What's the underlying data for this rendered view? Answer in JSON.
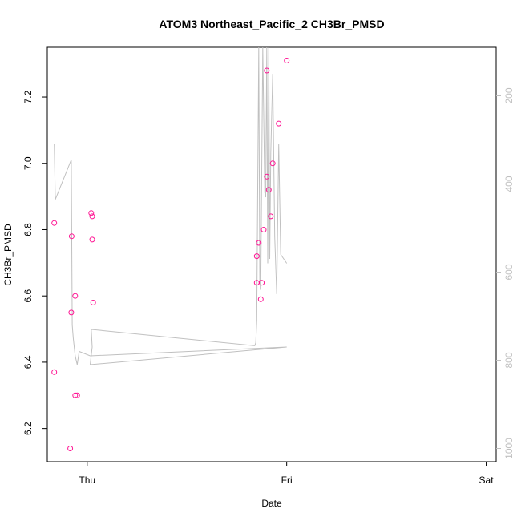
{
  "chart_data": {
    "type": "scatter",
    "title": "ATOM3 Northeast_Pacific_2 CH3Br_PMSD",
    "xlabel": "Date",
    "ylabel": "CH3Br_PMSD",
    "x_ticks": [
      {
        "label": "Thu",
        "value": 0.0
      },
      {
        "label": "Fri",
        "value": 1.0
      },
      {
        "label": "Sat",
        "value": 2.0
      }
    ],
    "xlim": [
      -0.2,
      2.05
    ],
    "ylim": [
      6.1,
      7.35
    ],
    "y_ticks": [
      6.2,
      6.4,
      6.6,
      6.8,
      7.0,
      7.2
    ],
    "y2_label": "",
    "y2_ticks": [
      200,
      400,
      600,
      800,
      1000
    ],
    "y2lim": [
      1030,
      90
    ],
    "y2_reversed": true,
    "grid": false,
    "colors": {
      "points": "#ff1493",
      "line": "#c0c0c0",
      "right_axis": "#c0c0c0",
      "axis": "#000000"
    },
    "series": [
      {
        "kind": "points",
        "x": [
          -0.165,
          -0.165,
          -0.085,
          -0.08,
          -0.078,
          -0.06,
          -0.06,
          -0.05,
          0.02,
          0.025,
          0.025,
          0.03,
          0.85,
          0.85,
          0.86,
          0.87,
          0.875,
          0.885,
          0.9,
          0.9,
          0.91,
          0.92,
          0.93,
          0.96,
          1.0
        ],
        "y": [
          6.82,
          6.37,
          6.14,
          6.55,
          6.78,
          6.3,
          6.6,
          6.3,
          6.85,
          6.84,
          6.77,
          6.58,
          6.64,
          6.72,
          6.76,
          6.59,
          6.64,
          6.8,
          6.96,
          7.28,
          6.92,
          6.84,
          7.0,
          7.12,
          7.31
        ],
        "x_note_ignore": 0
      },
      {
        "kind": "line",
        "x": [
          -0.165,
          -0.16,
          -0.08,
          -0.075,
          -0.07,
          -0.06,
          -0.05,
          -0.04,
          0.015,
          1.0,
          0.015,
          0.025,
          0.02,
          0.84,
          0.845,
          0.85,
          0.86,
          0.865,
          0.87,
          0.88,
          0.89,
          0.895,
          0.9,
          0.905,
          0.91,
          0.915,
          0.92,
          0.93,
          0.94,
          0.95,
          0.96,
          0.97,
          1.0
        ],
        "y2": [
          310,
          435,
          345,
          720,
          750,
          790,
          810,
          780,
          790,
          770,
          810,
          770,
          730,
          767,
          760,
          710,
          90,
          620,
          640,
          90,
          420,
          430,
          90,
          580,
          80,
          570,
          330,
          150,
          520,
          650,
          310,
          560,
          580
        ]
      }
    ]
  }
}
